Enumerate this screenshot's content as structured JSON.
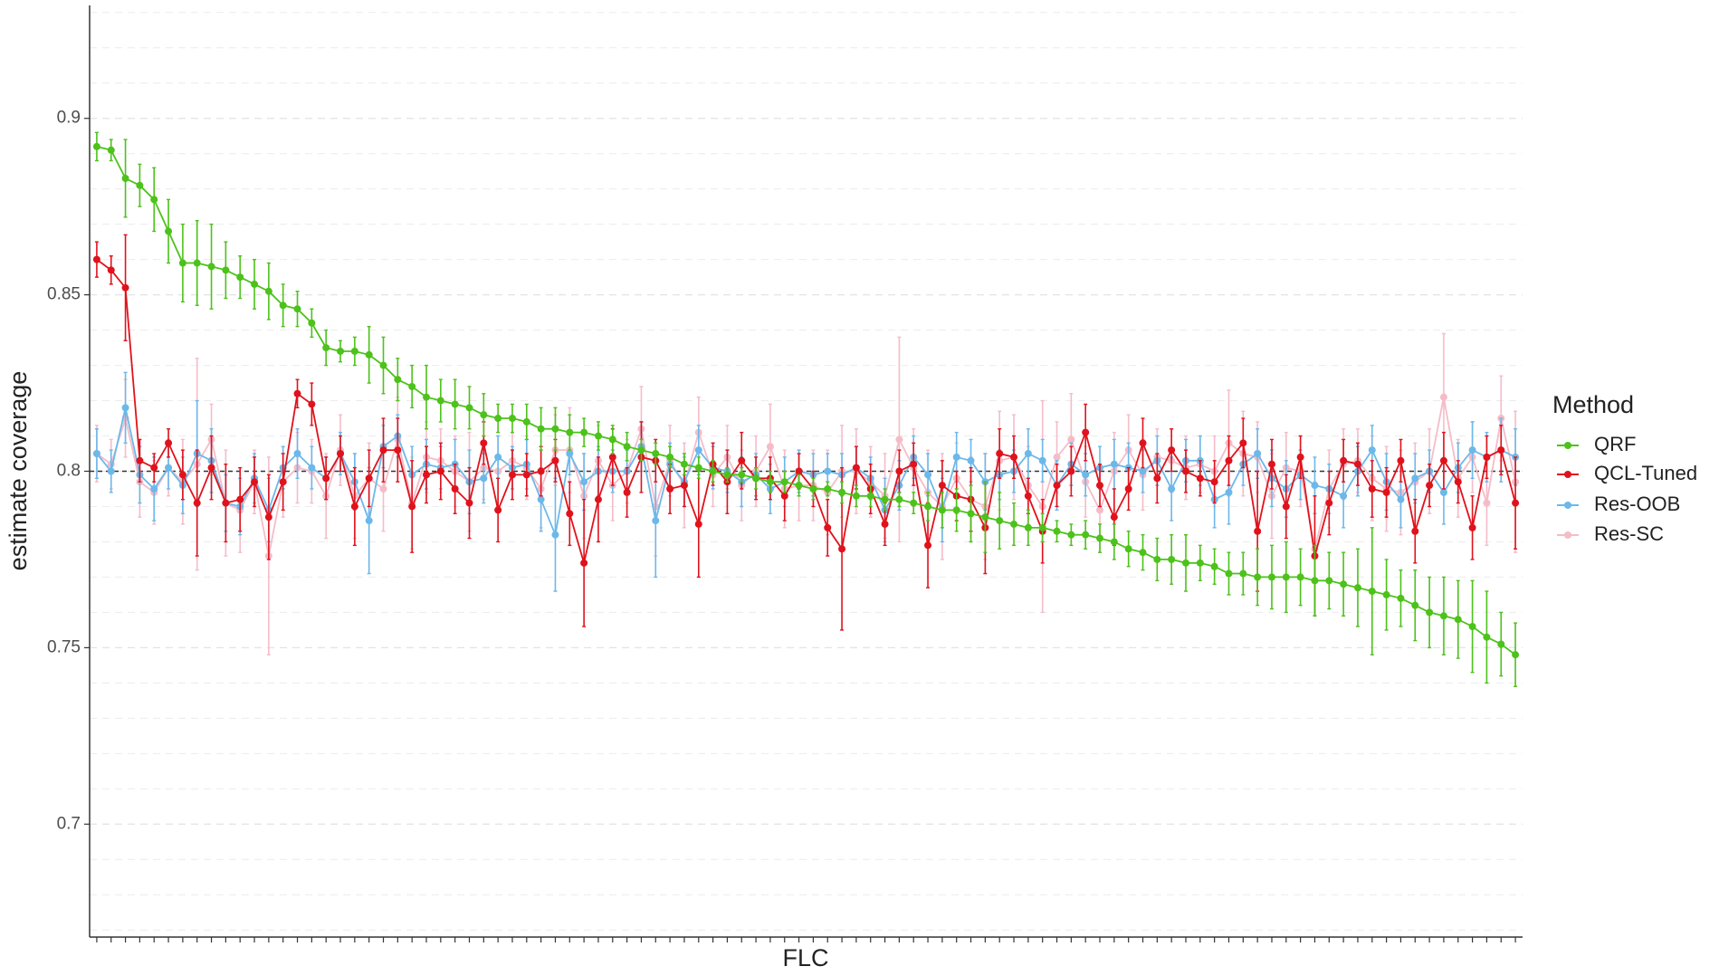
{
  "chart_data": {
    "type": "errorbar_line",
    "x_label": "FLC",
    "y_label": "estimate coverage",
    "legend_title": "Method",
    "legend": "right",
    "ylim": [
      0.668,
      0.932
    ],
    "yticks": [
      0.7,
      0.75,
      0.8,
      0.85,
      0.9
    ],
    "ygrid_minor": [
      0.67,
      0.68,
      0.69,
      0.7,
      0.71,
      0.72,
      0.73,
      0.74,
      0.75,
      0.76,
      0.77,
      0.78,
      0.79,
      0.8,
      0.81,
      0.82,
      0.83,
      0.84,
      0.85,
      0.86,
      0.87,
      0.88,
      0.89,
      0.9,
      0.91,
      0.92,
      0.93
    ],
    "grid": true,
    "hline": 0.8,
    "categories": [
      null,
      null,
      null,
      null,
      null,
      null,
      null,
      null,
      null,
      null,
      null,
      null,
      null,
      null,
      null,
      null,
      null,
      null,
      null,
      null,
      null,
      null,
      null,
      null,
      null,
      null,
      null,
      null,
      null,
      null,
      null,
      null,
      null,
      null,
      null,
      null,
      null,
      null,
      null,
      null,
      null,
      null,
      null,
      null,
      null,
      null,
      null,
      null,
      null,
      null,
      null,
      null,
      null,
      null,
      null,
      null,
      null,
      null,
      null,
      null,
      null,
      null,
      null,
      null,
      null,
      null,
      null,
      null,
      null,
      null,
      null,
      null,
      null,
      null,
      null,
      null,
      null,
      null,
      null,
      null,
      null,
      null,
      null,
      null,
      null,
      null,
      null,
      null,
      null,
      null,
      null,
      null,
      null,
      null,
      null,
      null,
      null,
      null,
      null,
      null
    ],
    "series": [
      {
        "name": "QRF",
        "color": "#4cc21a",
        "values": [
          0.892,
          0.891,
          0.883,
          0.881,
          0.877,
          0.868,
          0.859,
          0.859,
          0.858,
          0.857,
          0.855,
          0.853,
          0.851,
          0.847,
          0.846,
          0.842,
          0.835,
          0.834,
          0.834,
          0.833,
          0.83,
          0.826,
          0.824,
          0.821,
          0.82,
          0.819,
          0.818,
          0.816,
          0.815,
          0.815,
          0.814,
          0.812,
          0.812,
          0.811,
          0.811,
          0.81,
          0.809,
          0.807,
          0.806,
          0.805,
          0.804,
          0.802,
          0.801,
          0.8,
          0.799,
          0.799,
          0.798,
          0.797,
          0.797,
          0.796,
          0.795,
          0.795,
          0.794,
          0.793,
          0.793,
          0.792,
          0.792,
          0.791,
          0.79,
          0.789,
          0.789,
          0.788,
          0.787,
          0.786,
          0.785,
          0.784,
          0.784,
          0.783,
          0.782,
          0.782,
          0.781,
          0.78,
          0.778,
          0.777,
          0.775,
          0.775,
          0.774,
          0.774,
          0.773,
          0.771,
          0.771,
          0.77,
          0.77,
          0.77,
          0.77,
          0.769,
          0.769,
          0.768,
          0.767,
          0.766,
          0.765,
          0.764,
          0.762,
          0.76,
          0.759,
          0.758,
          0.756,
          0.753,
          0.751,
          0.748
        ],
        "errors": [
          0.004,
          0.003,
          0.011,
          0.006,
          0.009,
          0.009,
          0.011,
          0.012,
          0.012,
          0.008,
          0.006,
          0.007,
          0.008,
          0.006,
          0.005,
          0.004,
          0.005,
          0.003,
          0.004,
          0.008,
          0.008,
          0.006,
          0.006,
          0.009,
          0.006,
          0.007,
          0.006,
          0.006,
          0.004,
          0.004,
          0.005,
          0.006,
          0.006,
          0.005,
          0.004,
          0.004,
          0.004,
          0.004,
          0.003,
          0.003,
          0.003,
          0.003,
          0.003,
          0.003,
          0.002,
          0.002,
          0.003,
          0.003,
          0.003,
          0.003,
          0.003,
          0.002,
          0.003,
          0.003,
          0.003,
          0.003,
          0.002,
          0.003,
          0.004,
          0.005,
          0.006,
          0.008,
          0.01,
          0.008,
          0.006,
          0.005,
          0.004,
          0.003,
          0.003,
          0.004,
          0.004,
          0.005,
          0.005,
          0.005,
          0.006,
          0.007,
          0.008,
          0.005,
          0.005,
          0.006,
          0.006,
          0.008,
          0.009,
          0.01,
          0.008,
          0.01,
          0.008,
          0.009,
          0.011,
          0.018,
          0.01,
          0.008,
          0.01,
          0.01,
          0.011,
          0.011,
          0.013,
          0.013,
          0.009,
          0.009
        ]
      },
      {
        "name": "QCL-Tuned",
        "color": "#e0121c",
        "values": [
          0.86,
          0.857,
          0.852,
          0.803,
          0.801,
          0.808,
          0.799,
          0.791,
          0.801,
          0.791,
          0.792,
          0.797,
          0.787,
          0.797,
          0.822,
          0.819,
          0.798,
          0.805,
          0.79,
          0.798,
          0.806,
          0.806,
          0.79,
          0.799,
          0.8,
          0.795,
          0.791,
          0.808,
          0.789,
          0.799,
          0.799,
          0.8,
          0.803,
          0.788,
          0.774,
          0.792,
          0.804,
          0.794,
          0.804,
          0.803,
          0.795,
          0.796,
          0.785,
          0.802,
          0.797,
          0.803,
          0.798,
          0.798,
          0.793,
          0.8,
          0.795,
          0.784,
          0.778,
          0.801,
          0.795,
          0.785,
          0.8,
          0.802,
          0.779,
          0.796,
          0.793,
          0.792,
          0.784,
          0.805,
          0.804,
          0.793,
          0.783,
          0.796,
          0.8,
          0.811,
          0.796,
          0.787,
          0.795,
          0.808,
          0.798,
          0.806,
          0.8,
          0.798,
          0.797,
          0.803,
          0.808,
          0.783,
          0.802,
          0.79,
          0.804,
          0.776,
          0.791,
          0.803,
          0.802,
          0.795,
          0.794,
          0.803,
          0.783,
          0.796,
          0.803,
          0.797,
          0.784,
          0.804,
          0.806,
          0.791
        ],
        "errors": [
          0.005,
          0.004,
          0.015,
          0.006,
          0.004,
          0.004,
          0.007,
          0.015,
          0.009,
          0.011,
          0.009,
          0.007,
          0.012,
          0.008,
          0.004,
          0.006,
          0.006,
          0.005,
          0.011,
          0.008,
          0.009,
          0.009,
          0.013,
          0.008,
          0.008,
          0.007,
          0.01,
          0.006,
          0.009,
          0.007,
          0.006,
          0.007,
          0.006,
          0.009,
          0.018,
          0.012,
          0.008,
          0.007,
          0.01,
          0.006,
          0.007,
          0.006,
          0.015,
          0.006,
          0.009,
          0.008,
          0.006,
          0.006,
          0.007,
          0.005,
          0.005,
          0.008,
          0.023,
          0.006,
          0.007,
          0.006,
          0.006,
          0.006,
          0.012,
          0.007,
          0.007,
          0.009,
          0.013,
          0.007,
          0.006,
          0.005,
          0.009,
          0.006,
          0.007,
          0.008,
          0.006,
          0.008,
          0.006,
          0.007,
          0.007,
          0.006,
          0.006,
          0.005,
          0.006,
          0.007,
          0.007,
          0.017,
          0.007,
          0.009,
          0.006,
          0.017,
          0.009,
          0.006,
          0.006,
          0.008,
          0.007,
          0.006,
          0.009,
          0.006,
          0.008,
          0.006,
          0.009,
          0.006,
          0.007,
          0.013
        ]
      },
      {
        "name": "Res-OOB",
        "color": "#6cb8ea",
        "values": [
          0.805,
          0.8,
          0.818,
          0.799,
          0.795,
          0.801,
          0.796,
          0.805,
          0.803,
          0.791,
          0.79,
          0.798,
          0.789,
          0.801,
          0.805,
          0.801,
          0.798,
          0.805,
          0.797,
          0.786,
          0.807,
          0.81,
          0.799,
          0.802,
          0.801,
          0.802,
          0.797,
          0.798,
          0.804,
          0.801,
          0.802,
          0.792,
          0.782,
          0.805,
          0.797,
          0.8,
          0.8,
          0.8,
          0.807,
          0.786,
          0.802,
          0.797,
          0.806,
          0.801,
          0.8,
          0.797,
          0.799,
          0.795,
          0.797,
          0.8,
          0.799,
          0.8,
          0.799,
          0.801,
          0.798,
          0.789,
          0.796,
          0.804,
          0.799,
          0.789,
          0.804,
          0.803,
          0.797,
          0.799,
          0.8,
          0.805,
          0.803,
          0.796,
          0.802,
          0.799,
          0.801,
          0.802,
          0.801,
          0.8,
          0.803,
          0.795,
          0.803,
          0.803,
          0.792,
          0.794,
          0.802,
          0.805,
          0.798,
          0.795,
          0.799,
          0.796,
          0.795,
          0.793,
          0.8,
          0.806,
          0.797,
          0.792,
          0.798,
          0.8,
          0.794,
          0.801,
          0.806,
          0.804,
          0.806,
          0.804
        ],
        "errors": [
          0.007,
          0.006,
          0.01,
          0.008,
          0.009,
          0.006,
          0.008,
          0.015,
          0.009,
          0.008,
          0.008,
          0.007,
          0.009,
          0.006,
          0.007,
          0.006,
          0.006,
          0.006,
          0.008,
          0.015,
          0.006,
          0.006,
          0.008,
          0.007,
          0.006,
          0.007,
          0.009,
          0.007,
          0.006,
          0.006,
          0.007,
          0.009,
          0.016,
          0.006,
          0.008,
          0.007,
          0.006,
          0.006,
          0.007,
          0.016,
          0.006,
          0.007,
          0.007,
          0.006,
          0.006,
          0.007,
          0.006,
          0.007,
          0.007,
          0.006,
          0.006,
          0.005,
          0.006,
          0.006,
          0.006,
          0.009,
          0.007,
          0.006,
          0.006,
          0.009,
          0.007,
          0.006,
          0.008,
          0.007,
          0.006,
          0.007,
          0.006,
          0.007,
          0.006,
          0.006,
          0.006,
          0.007,
          0.007,
          0.006,
          0.007,
          0.009,
          0.006,
          0.007,
          0.008,
          0.009,
          0.006,
          0.007,
          0.008,
          0.008,
          0.007,
          0.008,
          0.007,
          0.009,
          0.007,
          0.007,
          0.008,
          0.008,
          0.007,
          0.006,
          0.009,
          0.007,
          0.008,
          0.007,
          0.009,
          0.008
        ]
      },
      {
        "name": "Res-SC",
        "color": "#f5bcc8",
        "values": [
          0.805,
          0.802,
          0.815,
          0.797,
          0.794,
          0.801,
          0.797,
          0.802,
          0.809,
          0.791,
          0.789,
          0.797,
          0.776,
          0.797,
          0.801,
          0.8,
          0.793,
          0.806,
          0.793,
          0.798,
          0.795,
          0.809,
          0.791,
          0.804,
          0.803,
          0.8,
          0.797,
          0.801,
          0.8,
          0.803,
          0.801,
          0.795,
          0.806,
          0.806,
          0.793,
          0.803,
          0.796,
          0.8,
          0.812,
          0.79,
          0.803,
          0.796,
          0.811,
          0.799,
          0.804,
          0.796,
          0.8,
          0.807,
          0.795,
          0.796,
          0.796,
          0.794,
          0.8,
          0.8,
          0.797,
          0.793,
          0.809,
          0.801,
          0.794,
          0.79,
          0.798,
          0.792,
          0.79,
          0.803,
          0.804,
          0.796,
          0.79,
          0.804,
          0.809,
          0.797,
          0.789,
          0.8,
          0.806,
          0.799,
          0.804,
          0.803,
          0.801,
          0.802,
          0.8,
          0.808,
          0.805,
          0.804,
          0.793,
          0.801,
          0.8,
          0.778,
          0.795,
          0.802,
          0.803,
          0.798,
          0.795,
          0.794,
          0.797,
          0.8,
          0.821,
          0.798,
          0.804,
          0.791,
          0.815,
          0.797
        ],
        "errors": [
          0.008,
          0.007,
          0.011,
          0.01,
          0.009,
          0.008,
          0.012,
          0.03,
          0.01,
          0.015,
          0.012,
          0.009,
          0.028,
          0.01,
          0.01,
          0.009,
          0.012,
          0.01,
          0.012,
          0.01,
          0.012,
          0.012,
          0.013,
          0.01,
          0.009,
          0.01,
          0.014,
          0.009,
          0.01,
          0.008,
          0.009,
          0.011,
          0.01,
          0.012,
          0.012,
          0.01,
          0.01,
          0.009,
          0.012,
          0.014,
          0.01,
          0.012,
          0.01,
          0.009,
          0.009,
          0.01,
          0.01,
          0.012,
          0.011,
          0.01,
          0.01,
          0.012,
          0.013,
          0.012,
          0.01,
          0.012,
          0.029,
          0.011,
          0.012,
          0.015,
          0.01,
          0.012,
          0.015,
          0.014,
          0.012,
          0.011,
          0.03,
          0.01,
          0.013,
          0.01,
          0.012,
          0.011,
          0.01,
          0.01,
          0.008,
          0.009,
          0.009,
          0.008,
          0.01,
          0.015,
          0.012,
          0.01,
          0.012,
          0.01,
          0.01,
          0.019,
          0.011,
          0.01,
          0.009,
          0.012,
          0.012,
          0.012,
          0.011,
          0.012,
          0.018,
          0.011,
          0.01,
          0.012,
          0.012,
          0.02
        ]
      }
    ]
  }
}
